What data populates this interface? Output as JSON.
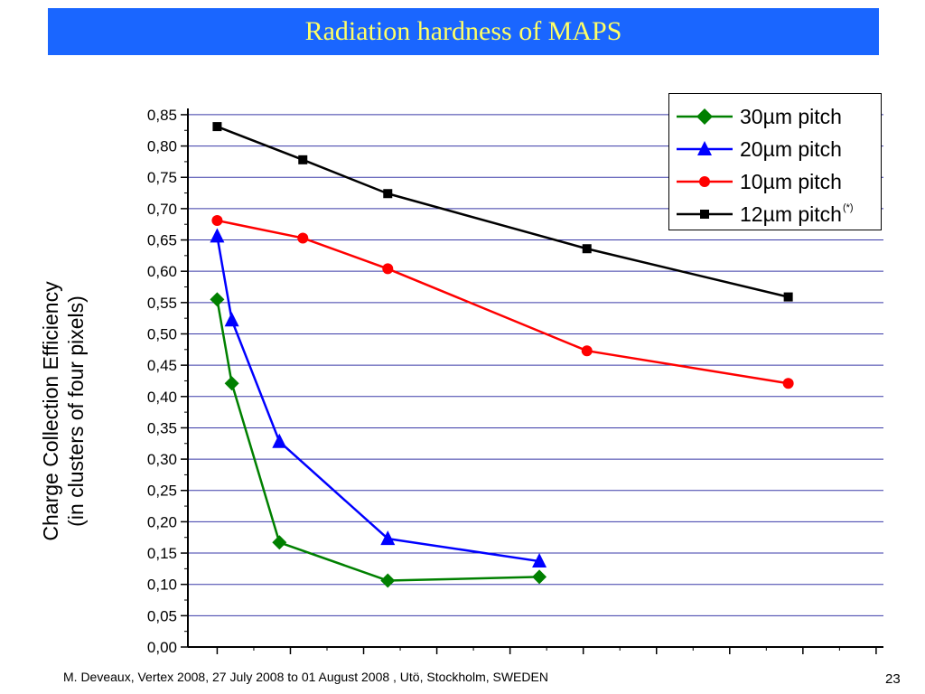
{
  "slide": {
    "title": "Radiation hardness of MAPS",
    "footer": "M. Deveaux, Vertex 2008, 27 July 2008 to 01 August 2008 , Utö, Stockholm, SWEDEN",
    "page_number": "23"
  },
  "colors": {
    "title_bar": "#1a66ff",
    "title_text": "#ffff66",
    "grid": "#3a3aa8"
  },
  "chart_data": {
    "type": "line",
    "title": "",
    "xlabel": "",
    "ylabel_lines": [
      "Charge Collection Efficiency",
      "(in clusters of four pixels)"
    ],
    "ylim": [
      0,
      0.86
    ],
    "xlim": [
      -0.4,
      9.1
    ],
    "y_ticks": [
      "0,00",
      "0,05",
      "0,10",
      "0,15",
      "0,20",
      "0,25",
      "0,30",
      "0,35",
      "0,40",
      "0,45",
      "0,50",
      "0,55",
      "0,60",
      "0,65",
      "0,70",
      "0,75",
      "0,80",
      "0,85"
    ],
    "x_major_ticks": [
      0,
      1,
      2,
      3,
      4,
      5,
      6,
      7,
      8,
      9
    ],
    "grid": "horizontal",
    "legend_position": "top-right",
    "series": [
      {
        "name": "30µm pitch",
        "marker": "diamond",
        "color": "#008000",
        "points": [
          [
            0.0,
            0.555
          ],
          [
            0.2,
            0.421
          ],
          [
            0.85,
            0.167
          ],
          [
            2.33,
            0.106
          ],
          [
            4.4,
            0.112
          ]
        ]
      },
      {
        "name": "20µm pitch",
        "marker": "triangle",
        "color": "#0000ff",
        "points": [
          [
            0.0,
            0.656
          ],
          [
            0.2,
            0.522
          ],
          [
            0.85,
            0.328
          ],
          [
            2.33,
            0.173
          ],
          [
            4.4,
            0.137
          ]
        ]
      },
      {
        "name": "10µm pitch",
        "marker": "circle",
        "color": "#ff0000",
        "points": [
          [
            0.0,
            0.681
          ],
          [
            1.17,
            0.653
          ],
          [
            2.33,
            0.604
          ],
          [
            5.05,
            0.473
          ],
          [
            7.8,
            0.421
          ]
        ]
      },
      {
        "name": "12µm pitch",
        "note": "(*)",
        "marker": "square",
        "color": "#000000",
        "points": [
          [
            0.0,
            0.831
          ],
          [
            1.17,
            0.778
          ],
          [
            2.33,
            0.724
          ],
          [
            5.05,
            0.636
          ],
          [
            7.8,
            0.559
          ]
        ]
      }
    ]
  }
}
